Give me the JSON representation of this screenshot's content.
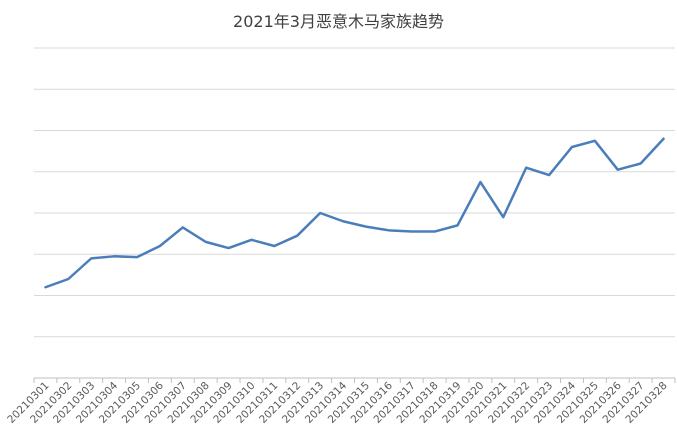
{
  "chart_data": {
    "type": "line",
    "title": "2021年3月恶意木马家族趋势",
    "xlabel": "",
    "ylabel": "",
    "grid": true,
    "y_tick_labels_visible": false,
    "ylim": [
      0,
      8
    ],
    "categories": [
      "20210301",
      "20210302",
      "20210303",
      "20210304",
      "20210305",
      "20210306",
      "20210307",
      "20210308",
      "20210309",
      "20210310",
      "20210311",
      "20210312",
      "20210313",
      "20210314",
      "20210315",
      "20210316",
      "20210317",
      "20210318",
      "20210319",
      "20210320",
      "20210321",
      "20210322",
      "20210323",
      "20210324",
      "20210325",
      "20210326",
      "20210327",
      "20210328"
    ],
    "series": [
      {
        "name": "",
        "color": "#4a7ebb",
        "values": [
          2.2,
          2.4,
          2.9,
          2.95,
          2.93,
          3.2,
          3.65,
          3.3,
          3.15,
          3.35,
          3.2,
          3.45,
          4.0,
          3.8,
          3.67,
          3.58,
          3.55,
          3.55,
          3.7,
          4.75,
          3.9,
          5.1,
          4.92,
          5.6,
          5.75,
          5.05,
          5.2,
          5.8
        ]
      }
    ]
  }
}
